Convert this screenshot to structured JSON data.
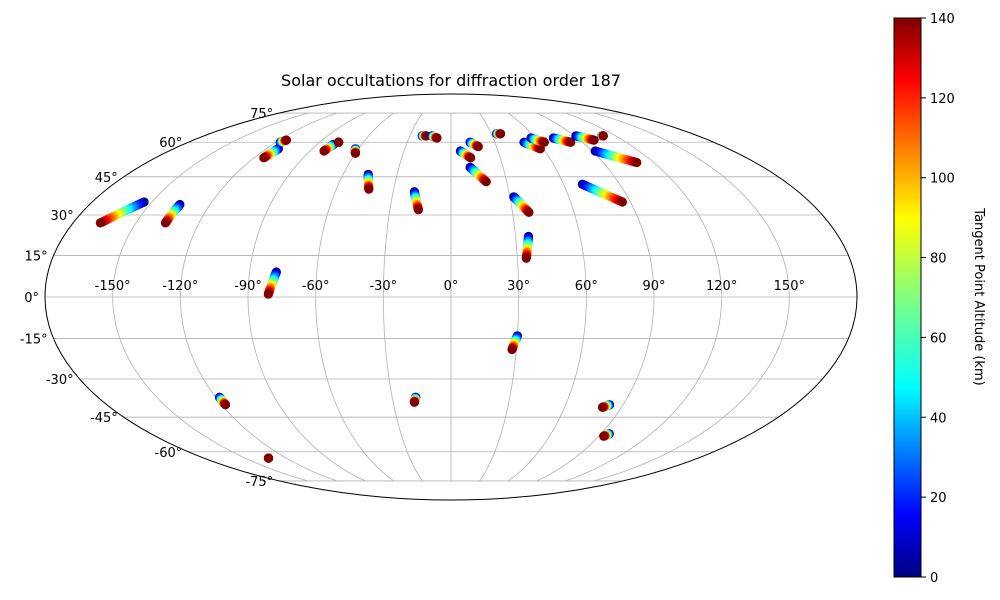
{
  "chart_data": {
    "type": "scatter",
    "projection": "mollweide",
    "title": "Solar occultations for diffraction order 187",
    "longitude_ticks": [
      -150,
      -120,
      -90,
      -60,
      -30,
      0,
      30,
      60,
      90,
      120,
      150
    ],
    "longitude_tick_labels": [
      "-150°",
      "-120°",
      "-90°",
      "-60°",
      "-30°",
      "0°",
      "30°",
      "60°",
      "90°",
      "120°",
      "150°"
    ],
    "latitude_ticks": [
      75,
      60,
      45,
      30,
      15,
      0,
      -15,
      -30,
      -45,
      -60,
      -75
    ],
    "latitude_tick_labels": [
      "75°",
      "60°",
      "45°",
      "30°",
      "15°",
      "0°",
      "-15°",
      "-30°",
      "-45°",
      "-60°",
      "-75°"
    ],
    "grid": true,
    "colorbar": {
      "label": "Tangent Point Altitude (km)",
      "range": [
        0,
        140
      ],
      "ticks": [
        0,
        20,
        40,
        60,
        80,
        100,
        120,
        140
      ],
      "tick_labels": [
        "0",
        "20",
        "40",
        "60",
        "80",
        "100",
        "120",
        "140"
      ],
      "colormap": "jet"
    },
    "tracks": [
      {
        "start": [
          -154,
          35
        ],
        "end": [
          -167,
          27
        ]
      },
      {
        "start": [
          -135,
          34
        ],
        "end": [
          -136,
          27
        ]
      },
      {
        "start": [
          -112,
          57
        ],
        "end": [
          -114,
          53
        ]
      },
      {
        "start": [
          -117,
          60
        ],
        "end": [
          -115,
          61
        ]
      },
      {
        "start": [
          -79,
          59
        ],
        "end": [
          -81,
          56
        ]
      },
      {
        "start": [
          -77,
          60
        ],
        "end": [
          -77,
          60
        ]
      },
      {
        "start": [
          -62,
          57
        ],
        "end": [
          -60,
          55
        ]
      },
      {
        "start": [
          -46,
          46
        ],
        "end": [
          -43,
          40
        ]
      },
      {
        "start": [
          -19,
          39
        ],
        "end": [
          -16,
          32
        ]
      },
      {
        "start": [
          -21,
          63
        ],
        "end": [
          -18,
          63
        ]
      },
      {
        "start": [
          -14,
          63
        ],
        "end": [
          -10,
          62
        ]
      },
      {
        "start": [
          6,
          56
        ],
        "end": [
          12,
          53
        ]
      },
      {
        "start": [
          13,
          60
        ],
        "end": [
          18,
          58
        ]
      },
      {
        "start": [
          11,
          49
        ],
        "end": [
          19,
          43
        ]
      },
      {
        "start": [
          32,
          37
        ],
        "end": [
          38,
          31
        ]
      },
      {
        "start": [
          34,
          64
        ],
        "end": [
          37,
          64
        ]
      },
      {
        "start": [
          50,
          60
        ],
        "end": [
          58,
          57
        ]
      },
      {
        "start": [
          57,
          62
        ],
        "end": [
          64,
          60
        ]
      },
      {
        "start": [
          70,
          42
        ],
        "end": [
          86,
          35
        ]
      },
      {
        "start": [
          73,
          62
        ],
        "end": [
          82,
          60
        ]
      },
      {
        "start": [
          91,
          63
        ],
        "end": [
          100,
          61
        ]
      },
      {
        "start": [
          92,
          56
        ],
        "end": [
          110,
          51
        ]
      },
      {
        "start": [
          110,
          63
        ],
        "end": [
          111,
          63
        ]
      },
      {
        "start": [
          36,
          22
        ],
        "end": [
          34,
          14
        ]
      },
      {
        "start": [
          -78,
          9
        ],
        "end": [
          -81,
          1
        ]
      },
      {
        "start": [
          30,
          -14
        ],
        "end": [
          28,
          -19
        ]
      },
      {
        "start": [
          -118,
          -37
        ],
        "end": [
          -118,
          -40
        ]
      },
      {
        "start": [
          -18,
          -37
        ],
        "end": [
          -19,
          -39
        ]
      },
      {
        "start": [
          83,
          -40
        ],
        "end": [
          80,
          -41
        ]
      },
      {
        "start": [
          95,
          -52
        ],
        "end": [
          93,
          -53
        ]
      },
      {
        "start": [
          -133,
          -63
        ],
        "end": [
          -133,
          -63
        ]
      }
    ]
  }
}
